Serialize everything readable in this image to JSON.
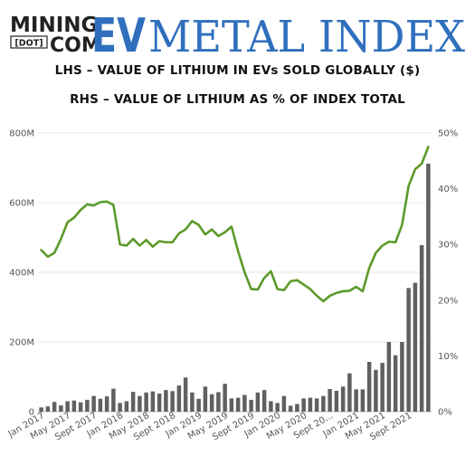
{
  "brand": {
    "mining": "MINING",
    "dot": "[DOT]",
    "com": "COM",
    "ev": "EV",
    "metal_index": "METAL INDEX"
  },
  "chart_data": {
    "type": "bar+line",
    "title": "LHS – VALUE OF LITHIUM IN EVs SOLD GLOBALLY ($)",
    "subtitle": "RHS – VALUE OF LITHIUM AS % OF INDEX TOTAL",
    "categories": [
      "Jan 2017",
      "Feb 2017",
      "Mar 2017",
      "Apr 2017",
      "May 2017",
      "Jun 2017",
      "Jul 2017",
      "Aug 2017",
      "Sep 2017",
      "Oct 2017",
      "Nov 2017",
      "Dec 2017",
      "Jan 2018",
      "Feb 2018",
      "Mar 2018",
      "Apr 2018",
      "May 2018",
      "Jun 2018",
      "Jul 2018",
      "Aug 2018",
      "Sep 2018",
      "Oct 2018",
      "Nov 2018",
      "Dec 2018",
      "Jan 2019",
      "Feb 2019",
      "Mar 2019",
      "Apr 2019",
      "May 2019",
      "Jun 2019",
      "Jul 2019",
      "Aug 2019",
      "Sep 2019",
      "Oct 2019",
      "Nov 2019",
      "Dec 2019",
      "Jan 2020",
      "Feb 2020",
      "Mar 2020",
      "Apr 2020",
      "May 2020",
      "Jun 2020",
      "Jul 2020",
      "Aug 2020",
      "Sep 2020",
      "Oct 2020",
      "Nov 2020",
      "Dec 2020",
      "Jan 2021",
      "Feb 2021",
      "Mar 2021",
      "Apr 2021",
      "May 2021",
      "Jun 2021",
      "Jul 2021",
      "Aug 2021",
      "Sep 2021",
      "Oct 2021",
      "Nov 2021",
      "Dec 2021"
    ],
    "x_tick_labels": [
      "Jan 2017",
      "May 2017",
      "Sept 2017",
      "Jan 2018",
      "May 2018",
      "Sept 2018",
      "Jan 2019",
      "May 2019",
      "Sept 2019",
      "Jan 2020",
      "May 2020",
      "Sept 20...",
      "Jan 2021",
      "May 2021",
      "Sept 2021"
    ],
    "left_axis": {
      "ticks": [
        "0",
        "200M",
        "400M",
        "600M",
        "800M"
      ],
      "ylim": [
        0,
        800
      ],
      "unit": "M USD"
    },
    "right_axis": {
      "ticks": [
        "0%",
        "10%",
        "20%",
        "30%",
        "40%",
        "50%"
      ],
      "ylim": [
        0,
        50
      ],
      "unit": "%"
    },
    "series": [
      {
        "name": "Value of lithium in EVs sold globally ($M)",
        "type": "bar",
        "axis": "left",
        "color": "#606060",
        "values": [
          12,
          15,
          28,
          18,
          30,
          32,
          27,
          34,
          45,
          37,
          44,
          66,
          25,
          30,
          57,
          45,
          55,
          58,
          52,
          62,
          59,
          75,
          98,
          55,
          37,
          72,
          50,
          56,
          80,
          38,
          40,
          48,
          34,
          55,
          62,
          30,
          25,
          45,
          17,
          22,
          38,
          40,
          38,
          45,
          65,
          60,
          72,
          110,
          64,
          64,
          143,
          120,
          140,
          200,
          162,
          200,
          355,
          370,
          478,
          712
        ]
      },
      {
        "name": "Value of lithium as % of index total",
        "type": "line",
        "axis": "right",
        "color": "#5c9a2a",
        "values": [
          29,
          27.8,
          28.5,
          31,
          34,
          34.8,
          36.2,
          37.2,
          37,
          37.6,
          37.7,
          37.1,
          30,
          29.8,
          31,
          29.8,
          30.8,
          29.6,
          30.6,
          30.4,
          30.4,
          32,
          32.7,
          34.2,
          33.5,
          31.8,
          32.7,
          31.5,
          32.2,
          33.2,
          28.8,
          25,
          22,
          21.9,
          24,
          25.2,
          22,
          21.8,
          23.4,
          23.6,
          22.8,
          22,
          20.8,
          19.8,
          20.8,
          21.3,
          21.6,
          21.7,
          22.4,
          21.6,
          25.8,
          28.5,
          29.8,
          30.5,
          30.4,
          33.5,
          40.5,
          43.5,
          44.5,
          47.5
        ]
      }
    ],
    "grid": "horizontal"
  }
}
